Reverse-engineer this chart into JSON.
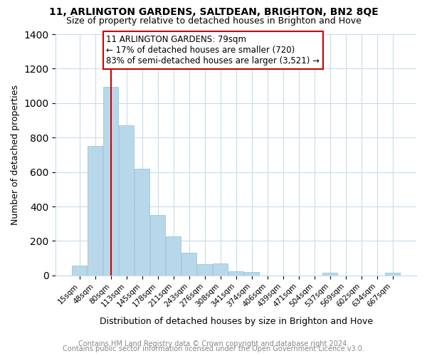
{
  "title": "11, ARLINGTON GARDENS, SALTDEAN, BRIGHTON, BN2 8QE",
  "subtitle": "Size of property relative to detached houses in Brighton and Hove",
  "xlabel": "Distribution of detached houses by size in Brighton and Hove",
  "ylabel": "Number of detached properties",
  "bar_labels": [
    "15sqm",
    "48sqm",
    "80sqm",
    "113sqm",
    "145sqm",
    "178sqm",
    "211sqm",
    "243sqm",
    "276sqm",
    "308sqm",
    "341sqm",
    "374sqm",
    "406sqm",
    "439sqm",
    "471sqm",
    "504sqm",
    "537sqm",
    "569sqm",
    "602sqm",
    "634sqm",
    "667sqm"
  ],
  "bar_values": [
    55,
    750,
    1095,
    870,
    620,
    350,
    225,
    130,
    65,
    70,
    25,
    20,
    0,
    0,
    0,
    0,
    15,
    0,
    0,
    0,
    15
  ],
  "bar_color": "#b8d8ea",
  "bar_edge_color": "#8fbfd4",
  "vline_index": 2,
  "vline_color": "#cc0000",
  "ylim": [
    0,
    1400
  ],
  "yticks": [
    0,
    200,
    400,
    600,
    800,
    1000,
    1200,
    1400
  ],
  "annotation_text": "11 ARLINGTON GARDENS: 79sqm\n← 17% of detached houses are smaller (720)\n83% of semi-detached houses are larger (3,521) →",
  "footer1": "Contains HM Land Registry data © Crown copyright and database right 2024.",
  "footer2": "Contains public sector information licensed under the Open Government Licence v3.0.",
  "background_color": "#ffffff",
  "grid_color": "#c8dce8",
  "title_fontsize": 10,
  "subtitle_fontsize": 9,
  "axis_label_fontsize": 9,
  "tick_fontsize": 7.5,
  "annotation_fontsize": 8.5,
  "footer_fontsize": 7
}
